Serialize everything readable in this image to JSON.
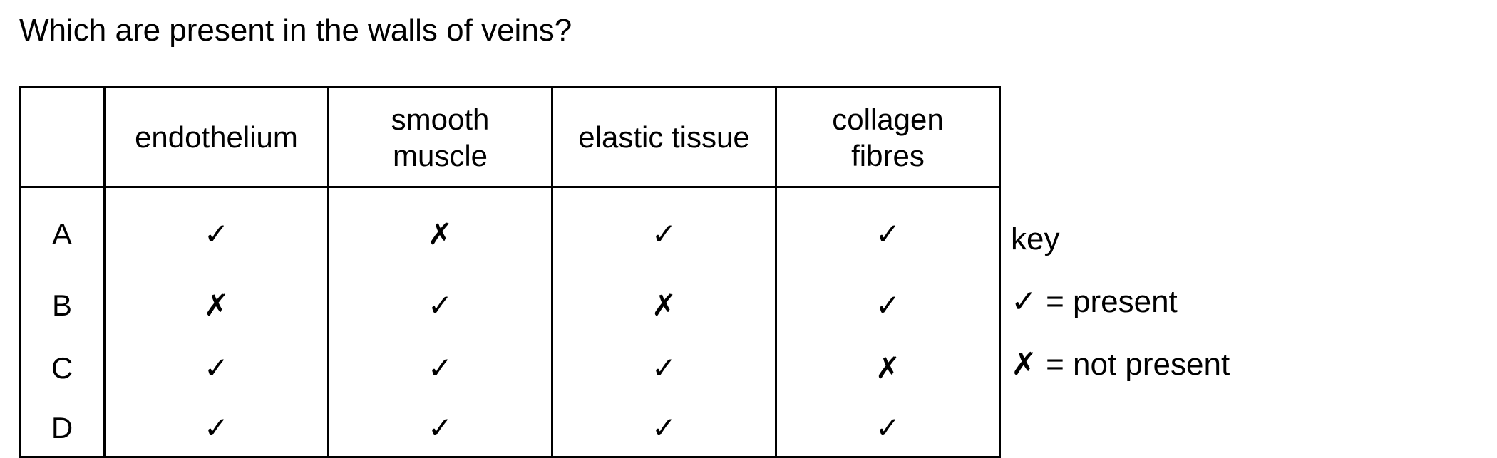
{
  "question": "Which are present in the walls of veins?",
  "table": {
    "headers": [
      "",
      "endothelium",
      "smooth\nmuscle",
      "elastic tissue",
      "collagen\nfibres"
    ],
    "rows": [
      {
        "letter": "A",
        "marks": [
          "✓",
          "✗",
          "✓",
          "✓"
        ]
      },
      {
        "letter": "B",
        "marks": [
          "✗",
          "✓",
          "✗",
          "✓"
        ]
      },
      {
        "letter": "C",
        "marks": [
          "✓",
          "✓",
          "✓",
          "✗"
        ]
      },
      {
        "letter": "D",
        "marks": [
          "✓",
          "✓",
          "✓",
          "✓"
        ]
      }
    ]
  },
  "key": {
    "title": "key",
    "present_symbol": "✓",
    "present_text": " = present",
    "absent_symbol": "✗",
    "absent_text": " = not present"
  }
}
